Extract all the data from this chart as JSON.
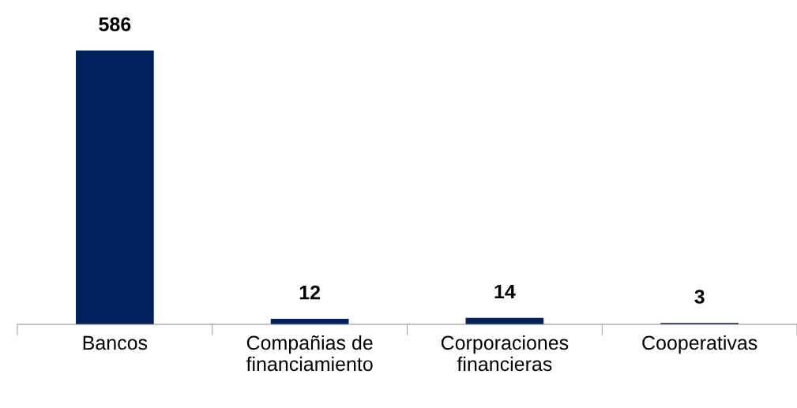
{
  "chart_data": {
    "type": "bar",
    "categories": [
      "Bancos",
      "Compañias de\nfinanciamiento",
      "Corporaciones\nfinancieras",
      "Cooperativas"
    ],
    "values": [
      586,
      12,
      14,
      3
    ],
    "color": "#002060",
    "data_labels": true,
    "grid": false,
    "legend": false
  }
}
